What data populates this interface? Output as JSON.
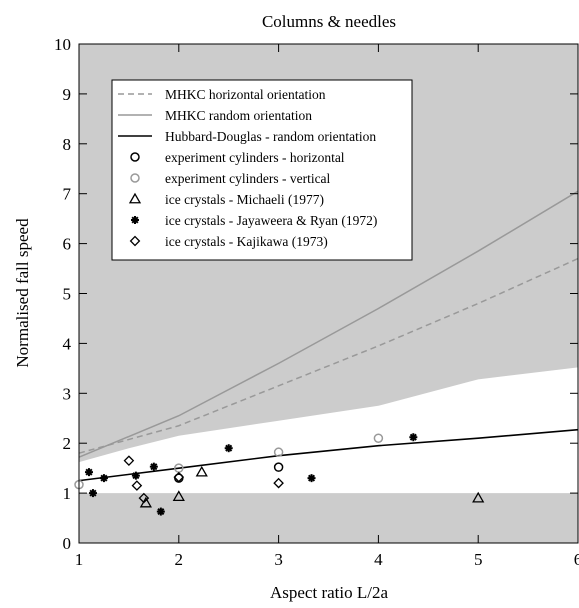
{
  "chart_data": {
    "type": "scatter",
    "title": "Columns & needles",
    "xlabel": "Aspect ratio L/2a",
    "ylabel": "Normalised fall speed",
    "xlim": [
      1,
      6
    ],
    "ylim": [
      0,
      10
    ],
    "x_ticks": [
      1,
      2,
      3,
      4,
      5,
      6
    ],
    "y_ticks": [
      0,
      1,
      2,
      3,
      4,
      5,
      6,
      7,
      8,
      9,
      10
    ],
    "grid": false,
    "legend_position": "top-left",
    "shaded_regions": [
      {
        "color": "#cccccc",
        "x": [
          1,
          6
        ],
        "lower": [
          0,
          0
        ],
        "upper": [
          1,
          1
        ]
      },
      {
        "color": "#cccccc",
        "x": [
          1,
          1.5,
          2,
          3,
          4,
          5,
          6
        ],
        "lower": [
          1.62,
          1.9,
          2.15,
          2.45,
          2.75,
          3.28,
          3.52
        ],
        "upper": [
          10,
          10,
          10,
          10,
          10,
          10,
          10
        ]
      }
    ],
    "series": [
      {
        "name": "MHKC horizontal orientation",
        "kind": "line",
        "style": "dashed",
        "color": "#999999",
        "x": [
          1,
          2,
          3,
          4,
          5,
          6
        ],
        "y": [
          1.8,
          2.35,
          3.15,
          3.95,
          4.8,
          5.7
        ]
      },
      {
        "name": "MHKC random orientation",
        "kind": "line",
        "style": "solid",
        "color": "#999999",
        "x": [
          1,
          2,
          3,
          4,
          5,
          6
        ],
        "y": [
          1.72,
          2.55,
          3.6,
          4.7,
          5.85,
          7.05
        ]
      },
      {
        "name": "Hubbard-Douglas - random orientation",
        "kind": "line",
        "style": "solid",
        "color": "#000000",
        "x": [
          1,
          2,
          3,
          4,
          5,
          6
        ],
        "y": [
          1.25,
          1.5,
          1.75,
          1.95,
          2.1,
          2.27
        ]
      },
      {
        "name": "experiment cylinders - horizontal",
        "kind": "points",
        "marker": "circle",
        "color": "#000000",
        "x": [
          2,
          3
        ],
        "y": [
          1.3,
          1.52
        ]
      },
      {
        "name": "experiment cylinders - vertical",
        "kind": "points",
        "marker": "circle",
        "color": "#999999",
        "x": [
          1,
          2,
          3,
          4
        ],
        "y": [
          1.17,
          1.5,
          1.82,
          2.1
        ]
      },
      {
        "name": "ice crystals - Michaeli (1977)",
        "kind": "points",
        "marker": "triangle",
        "color": "#000000",
        "x": [
          1.67,
          2,
          2.23,
          5
        ],
        "y": [
          0.8,
          0.93,
          1.42,
          0.9
        ]
      },
      {
        "name": "ice crystals - Jayaweera & Ryan (1972)",
        "kind": "points",
        "marker": "star",
        "color": "#000000",
        "x": [
          1.1,
          1.14,
          1.25,
          1.57,
          1.75,
          1.82,
          2.5,
          3.33,
          4.35
        ],
        "y": [
          1.42,
          1.0,
          1.3,
          1.35,
          1.53,
          0.63,
          1.9,
          1.3,
          2.12
        ]
      },
      {
        "name": "ice crystals - Kajikawa (1973)",
        "kind": "points",
        "marker": "diamond",
        "color": "#000000",
        "x": [
          1.5,
          1.58,
          1.65,
          2,
          3
        ],
        "y": [
          1.65,
          1.15,
          0.9,
          1.32,
          1.2
        ]
      }
    ]
  }
}
